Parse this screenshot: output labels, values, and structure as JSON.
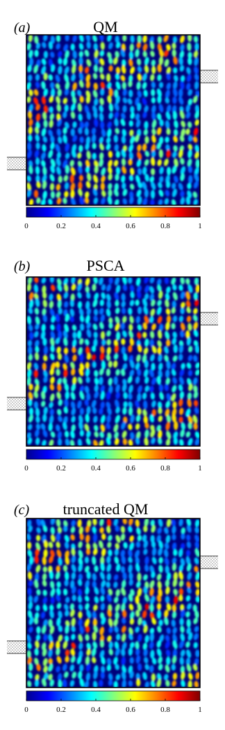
{
  "panels": [
    {
      "label": "(a)",
      "title": "QM"
    },
    {
      "label": "(b)",
      "title": "PSCA"
    },
    {
      "label": "(c)",
      "title": "truncated QM"
    }
  ],
  "colorbar": {
    "lim": [
      0,
      1
    ],
    "ticks": [
      0,
      0.2,
      0.4,
      0.6,
      0.8,
      1
    ]
  }
}
